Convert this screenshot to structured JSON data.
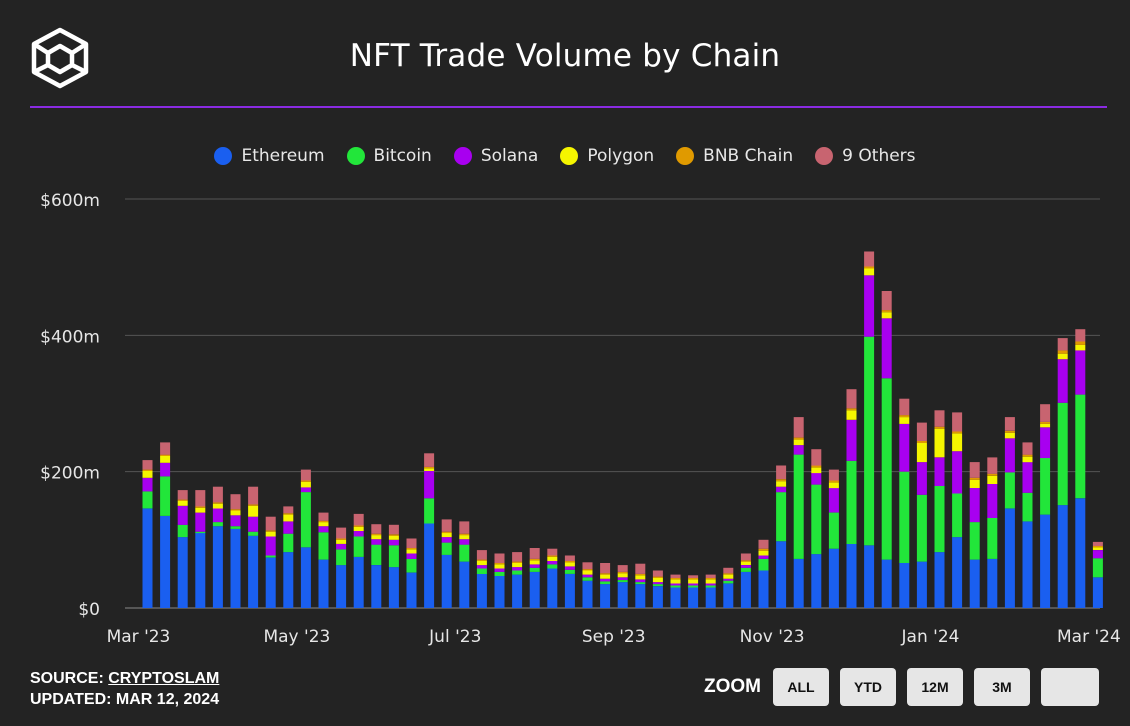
{
  "title": "NFT Trade Volume by Chain",
  "footer": {
    "source_prefix": "SOURCE: ",
    "source_name": "CRYPTOSLAM",
    "updated": "UPDATED: MAR 12, 2024"
  },
  "zoom": {
    "label": "ZOOM",
    "buttons": [
      "ALL",
      "YTD",
      "12M",
      "3M",
      ""
    ]
  },
  "colors": {
    "background": "#232323",
    "accent": "#8a2be2",
    "grid": "#555555"
  },
  "chart_data": {
    "type": "bar",
    "stacked": true,
    "title": "NFT Trade Volume by Chain",
    "unit": "$m",
    "ylim": [
      0,
      600
    ],
    "yticks": [
      0,
      200,
      400,
      600
    ],
    "ytick_labels": [
      "$0",
      "$200m",
      "$400m",
      "$600m"
    ],
    "xtick_labels": [
      {
        "label": "Mar '23",
        "index": 0
      },
      {
        "label": "May '23",
        "index": 9
      },
      {
        "label": "Jul '23",
        "index": 18
      },
      {
        "label": "Sep '23",
        "index": 27
      },
      {
        "label": "Nov '23",
        "index": 36
      },
      {
        "label": "Jan '24",
        "index": 45
      },
      {
        "label": "Mar '24",
        "index": 54
      }
    ],
    "legend_position": "top",
    "series": [
      {
        "name": "Ethereum",
        "color": "#1a5ff0",
        "values": [
          146,
          135,
          104,
          110,
          120,
          116,
          106,
          74,
          82,
          89,
          71,
          63,
          75,
          63,
          60,
          52,
          124,
          78,
          68,
          50,
          47,
          49,
          53,
          58,
          50,
          40,
          35,
          38,
          35,
          32,
          30,
          30,
          30,
          36,
          53,
          55,
          98,
          72,
          79,
          87,
          94,
          92,
          71,
          66,
          68,
          82,
          104,
          71,
          72,
          146,
          127,
          137,
          151,
          161,
          45
        ]
      },
      {
        "name": "Bitcoin",
        "color": "#22e63a",
        "values": [
          25,
          58,
          18,
          2,
          6,
          4,
          6,
          3,
          27,
          81,
          40,
          23,
          30,
          30,
          32,
          20,
          37,
          18,
          25,
          8,
          6,
          6,
          6,
          6,
          6,
          5,
          4,
          3,
          3,
          3,
          3,
          3,
          3,
          4,
          6,
          17,
          72,
          153,
          102,
          53,
          122,
          306,
          266,
          134,
          98,
          97,
          64,
          55,
          60,
          53,
          42,
          83,
          150,
          152,
          28
        ]
      },
      {
        "name": "Solana",
        "color": "#a800f0",
        "values": [
          20,
          20,
          28,
          28,
          20,
          16,
          22,
          28,
          18,
          7,
          9,
          8,
          8,
          8,
          8,
          8,
          40,
          8,
          8,
          5,
          5,
          5,
          5,
          5,
          5,
          4,
          4,
          4,
          4,
          3,
          3,
          3,
          3,
          3,
          4,
          5,
          8,
          14,
          17,
          36,
          60,
          90,
          88,
          70,
          48,
          42,
          62,
          50,
          50,
          50,
          45,
          45,
          64,
          65,
          12
        ]
      },
      {
        "name": "Polygon",
        "color": "#f5f500",
        "values": [
          10,
          10,
          7,
          7,
          7,
          7,
          16,
          7,
          10,
          8,
          6,
          6,
          6,
          6,
          6,
          6,
          4,
          6,
          6,
          6,
          6,
          6,
          6,
          6,
          6,
          6,
          6,
          6,
          6,
          6,
          6,
          6,
          6,
          6,
          5,
          7,
          8,
          8,
          8,
          8,
          14,
          10,
          9,
          10,
          28,
          42,
          26,
          12,
          12,
          8,
          8,
          5,
          8,
          8,
          4
        ]
      },
      {
        "name": "BNB Chain",
        "color": "#e09a00",
        "values": [
          2,
          2,
          2,
          2,
          2,
          2,
          2,
          2,
          2,
          2,
          2,
          2,
          2,
          2,
          2,
          2,
          2,
          2,
          2,
          2,
          2,
          2,
          2,
          2,
          2,
          2,
          2,
          2,
          2,
          2,
          2,
          2,
          2,
          2,
          2,
          3,
          3,
          3,
          3,
          3,
          3,
          3,
          3,
          3,
          3,
          3,
          3,
          3,
          3,
          3,
          3,
          3,
          5,
          5,
          2
        ]
      },
      {
        "name": "9 Others",
        "color": "#c86470",
        "values": [
          14,
          18,
          14,
          24,
          23,
          22,
          26,
          20,
          10,
          16,
          12,
          16,
          17,
          14,
          14,
          14,
          20,
          18,
          18,
          14,
          14,
          14,
          16,
          10,
          8,
          10,
          15,
          10,
          15,
          9,
          5,
          4,
          5,
          8,
          10,
          13,
          20,
          30,
          24,
          16,
          28,
          22,
          28,
          24,
          27,
          24,
          28,
          23,
          24,
          20,
          18,
          26,
          18,
          18,
          6
        ]
      }
    ]
  }
}
